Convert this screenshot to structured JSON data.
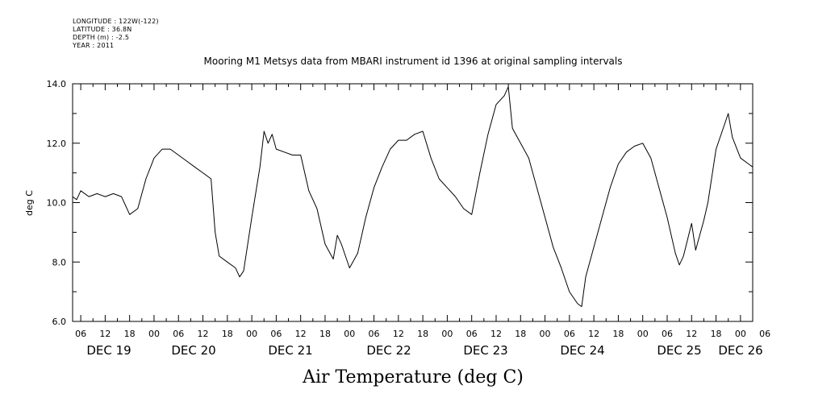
{
  "header": {
    "longitude": "LONGITUDE : 122W(-122)",
    "latitude": "LATITUDE : 36.8N",
    "depth": "DEPTH (m) : -2.5",
    "year": "YEAR : 2011"
  },
  "chart_data": {
    "type": "line",
    "title": "Mooring M1 Metsys data from MBARI instrument id 1396 at original sampling intervals",
    "xlabel": "Air Temperature (deg C)",
    "ylabel": "deg C",
    "ylim": [
      6.0,
      14.0
    ],
    "y_ticks": [
      "6.0",
      "8.0",
      "10.0",
      "12.0",
      "14.0"
    ],
    "x_range_hours": [
      4,
      171
    ],
    "hour_ticks": [
      "06",
      "12",
      "18",
      "00",
      "06",
      "12",
      "18",
      "00",
      "06",
      "12",
      "18",
      "00",
      "06",
      "12",
      "18",
      "00",
      "06",
      "12",
      "18",
      "00",
      "06",
      "12",
      "18",
      "00",
      "06",
      "12",
      "18",
      "00",
      "06"
    ],
    "date_labels": [
      "DEC 19",
      "DEC 20",
      "DEC 21",
      "DEC 22",
      "DEC 23",
      "DEC 24",
      "DEC 25",
      "DEC 26"
    ],
    "series": [
      {
        "values": [
          [
            4,
            10.2
          ],
          [
            5,
            10.1
          ],
          [
            6,
            10.4
          ],
          [
            8,
            10.2
          ],
          [
            10,
            10.3
          ],
          [
            12,
            10.2
          ],
          [
            14,
            10.3
          ],
          [
            16,
            10.2
          ],
          [
            18,
            9.6
          ],
          [
            20,
            9.8
          ],
          [
            22,
            10.8
          ],
          [
            24,
            11.5
          ],
          [
            26,
            11.8
          ],
          [
            28,
            11.8
          ],
          [
            30,
            11.6
          ],
          [
            32,
            11.4
          ],
          [
            34,
            11.2
          ],
          [
            36,
            11.0
          ],
          [
            38,
            10.8
          ],
          [
            39,
            9.0
          ],
          [
            40,
            8.2
          ],
          [
            42,
            8.0
          ],
          [
            44,
            7.8
          ],
          [
            45,
            7.5
          ],
          [
            46,
            7.7
          ],
          [
            48,
            9.5
          ],
          [
            50,
            11.2
          ],
          [
            51,
            12.4
          ],
          [
            52,
            12.0
          ],
          [
            53,
            12.3
          ],
          [
            54,
            11.8
          ],
          [
            56,
            11.7
          ],
          [
            58,
            11.6
          ],
          [
            60,
            11.6
          ],
          [
            62,
            10.4
          ],
          [
            64,
            9.8
          ],
          [
            66,
            8.6
          ],
          [
            68,
            8.1
          ],
          [
            69,
            8.9
          ],
          [
            70,
            8.6
          ],
          [
            72,
            7.8
          ],
          [
            74,
            8.3
          ],
          [
            76,
            9.5
          ],
          [
            78,
            10.5
          ],
          [
            80,
            11.2
          ],
          [
            82,
            11.8
          ],
          [
            84,
            12.1
          ],
          [
            86,
            12.1
          ],
          [
            88,
            12.3
          ],
          [
            90,
            12.4
          ],
          [
            92,
            11.5
          ],
          [
            94,
            10.8
          ],
          [
            96,
            10.5
          ],
          [
            98,
            10.2
          ],
          [
            100,
            9.8
          ],
          [
            102,
            9.6
          ],
          [
            104,
            11.0
          ],
          [
            106,
            12.3
          ],
          [
            108,
            13.3
          ],
          [
            110,
            13.6
          ],
          [
            111,
            13.9
          ],
          [
            112,
            12.5
          ],
          [
            114,
            12.0
          ],
          [
            116,
            11.5
          ],
          [
            118,
            10.5
          ],
          [
            120,
            9.5
          ],
          [
            122,
            8.5
          ],
          [
            124,
            7.8
          ],
          [
            126,
            7.0
          ],
          [
            128,
            6.6
          ],
          [
            129,
            6.5
          ],
          [
            130,
            7.5
          ],
          [
            132,
            8.5
          ],
          [
            134,
            9.5
          ],
          [
            136,
            10.5
          ],
          [
            138,
            11.3
          ],
          [
            140,
            11.7
          ],
          [
            142,
            11.9
          ],
          [
            144,
            12.0
          ],
          [
            146,
            11.5
          ],
          [
            148,
            10.5
          ],
          [
            150,
            9.5
          ],
          [
            152,
            8.3
          ],
          [
            153,
            7.9
          ],
          [
            154,
            8.2
          ],
          [
            156,
            9.3
          ],
          [
            157,
            8.4
          ],
          [
            159,
            9.4
          ],
          [
            160,
            10.0
          ],
          [
            162,
            11.8
          ],
          [
            164,
            12.6
          ],
          [
            165,
            13.0
          ],
          [
            166,
            12.2
          ],
          [
            168,
            11.5
          ],
          [
            170,
            11.3
          ],
          [
            171,
            11.2
          ]
        ]
      }
    ]
  }
}
